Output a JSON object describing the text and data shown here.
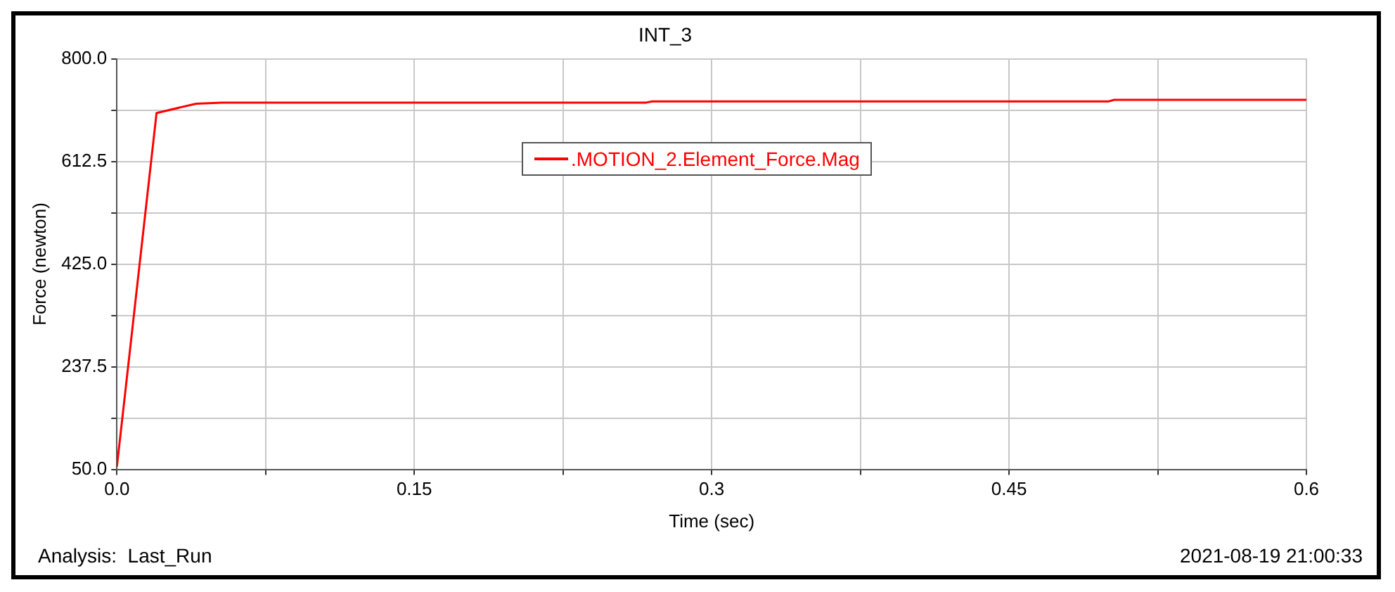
{
  "chart_data": {
    "type": "line",
    "title": "INT_3",
    "xlabel": "Time (sec)",
    "ylabel": "Force (newton)",
    "annotations": [
      "Analysis:  Last_Run",
      "2021-08-19 21:00:33"
    ],
    "series": [
      {
        "name": ".MOTION_2.Element_Force.Mag",
        "color": "#ff0000",
        "x": [
          0,
          0.02,
          0.04,
          0.053,
          0.267,
          0.27,
          0.5,
          0.503,
          0.6
        ],
        "values": [
          55,
          701,
          718,
          720,
          720,
          722,
          722,
          725,
          725
        ]
      }
    ],
    "xlim": [
      0,
      0.6
    ],
    "xticks": [
      {
        "value": 0,
        "label": "0.0"
      },
      {
        "value": 0.075,
        "label": null
      },
      0.15,
      {
        "value": 0.225,
        "label": null
      },
      0.3,
      {
        "value": 0.375,
        "label": null
      },
      0.45,
      {
        "value": 0.525,
        "label": null
      },
      0.6
    ],
    "ylim": [
      50,
      800
    ],
    "yticks": [
      {
        "value": 50,
        "label": "50.0"
      },
      {
        "value": 143.75,
        "label": null
      },
      {
        "value": 237.5,
        "label": "237.5"
      },
      {
        "value": 331.25,
        "label": null
      },
      {
        "value": 425,
        "label": "425.0"
      },
      {
        "value": 518.75,
        "label": null
      },
      {
        "value": 612.5,
        "label": "612.5"
      },
      {
        "value": 706.25,
        "label": null
      },
      {
        "value": 800,
        "label": "800.0"
      }
    ],
    "grid": true,
    "legend": "top",
    "marker": "none",
    "line_style": "solid"
  }
}
